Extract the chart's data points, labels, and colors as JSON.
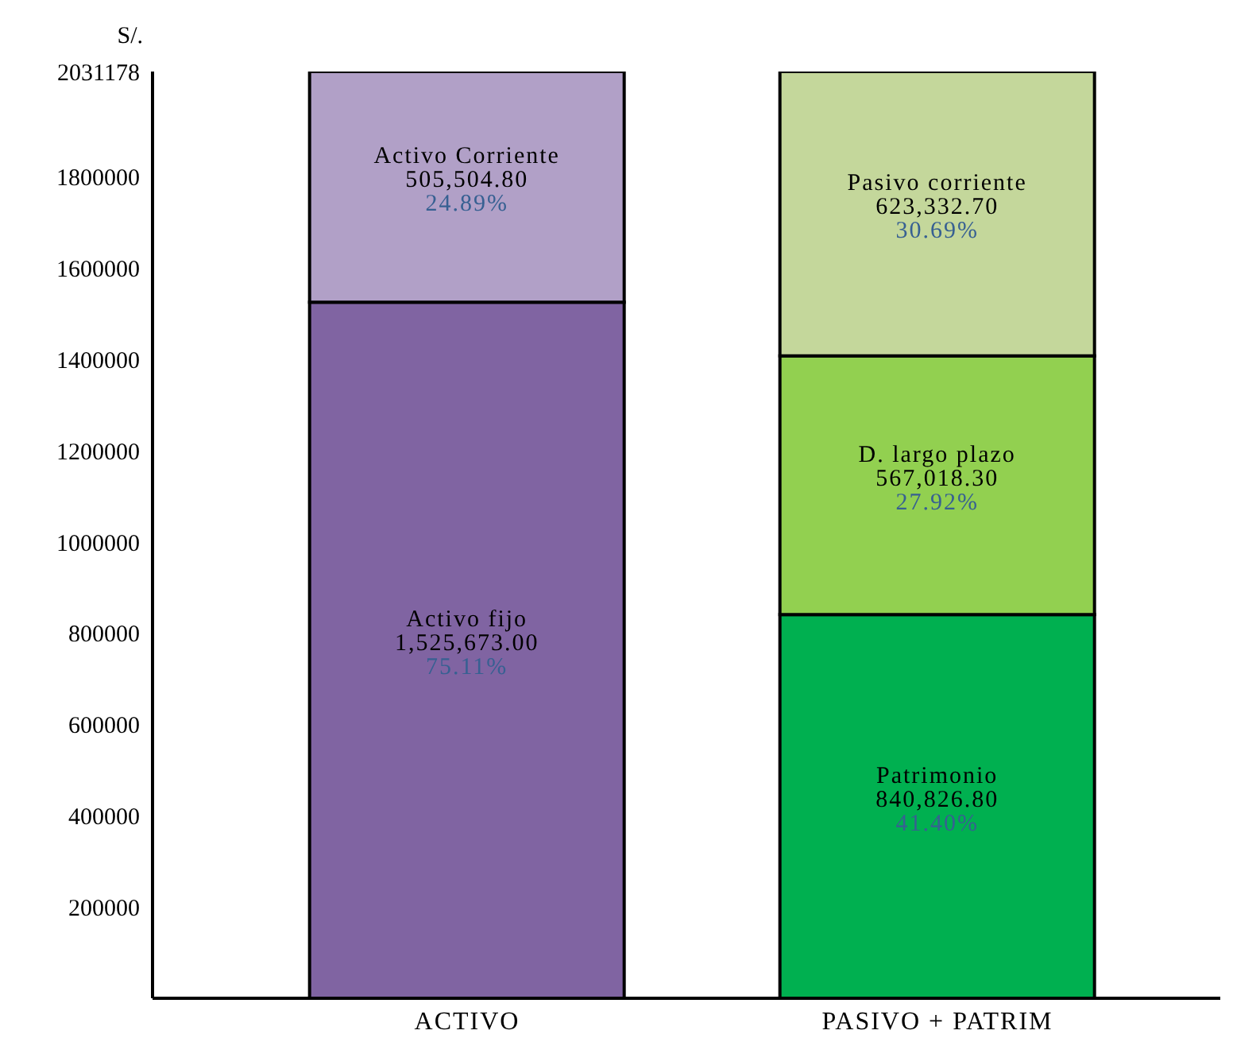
{
  "chart_data": {
    "type": "bar",
    "stacked": true,
    "ylabel": "S/.",
    "categories": [
      "ACTIVO",
      "PASIVO + PATRIM"
    ],
    "series": [
      {
        "name": "Activo fijo",
        "color": "#8064a2",
        "values": [
          1525673.0,
          null
        ],
        "value_labels": [
          "1,525,673.00",
          null
        ]
      },
      {
        "name": "Activo Corriente",
        "color": "#b1a0c7",
        "values": [
          505504.8,
          null
        ],
        "value_labels": [
          "505,504.80",
          null
        ]
      },
      {
        "name": "Patrimonio",
        "color": "#00b050",
        "values": [
          null,
          840826.8
        ],
        "value_labels": [
          null,
          "840,826.80"
        ]
      },
      {
        "name": "D. largo plazo",
        "color": "#92d050",
        "values": [
          null,
          567018.3
        ],
        "value_labels": [
          null,
          "567,018.30"
        ]
      },
      {
        "name": "Pasivo corriente",
        "color": "#c4d79b",
        "values": [
          null,
          623332.7
        ],
        "value_labels": [
          null,
          "623,332.70"
        ]
      }
    ],
    "ylim": [
      0,
      2031178
    ],
    "yticks": [
      200000,
      400000,
      600000,
      800000,
      1000000,
      1200000,
      1400000,
      1600000,
      1800000,
      2031178
    ],
    "grid": false,
    "legend": false,
    "annotations": [
      "75.11%",
      "24.89%",
      "41.40%",
      "27.92%",
      "30.69%"
    ]
  }
}
